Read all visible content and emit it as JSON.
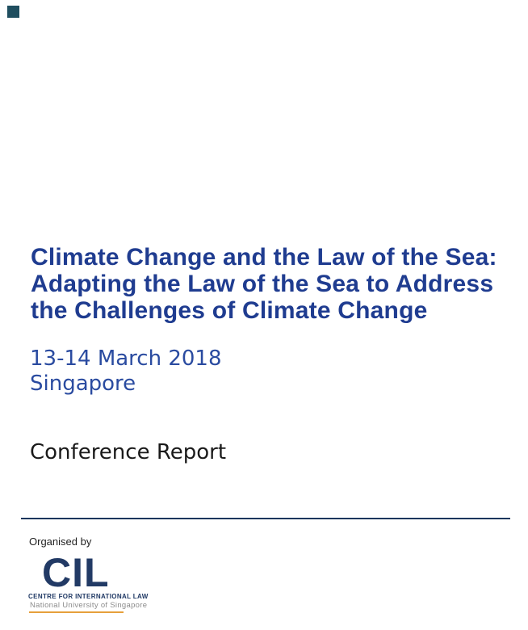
{
  "page": {
    "background_color": "#ffffff",
    "accent_square_color": "#1f4e5f"
  },
  "cover": {
    "title_lines": [
      "Climate Change and the Law of the Sea:",
      "Adapting the Law of the Sea to Address",
      "the Challenges of Climate Change"
    ],
    "title_color": "#1f3c90",
    "date_line1": "13-14 March 2018",
    "date_line2": "Singapore",
    "date_color": "#2a4ba0",
    "report_type": "Conference Report",
    "divider_color": "#17365d"
  },
  "footer": {
    "organised_by_label": "Organised by",
    "logo": {
      "acronym": "CIL",
      "name": "CENTRE FOR INTERNATIONAL LAW",
      "institution": "National University of Singapore",
      "acronym_color": "#223a65",
      "name_color": "#1f3864",
      "institution_color": "#8c8c8c",
      "underline_color": "#e6a03c"
    }
  }
}
